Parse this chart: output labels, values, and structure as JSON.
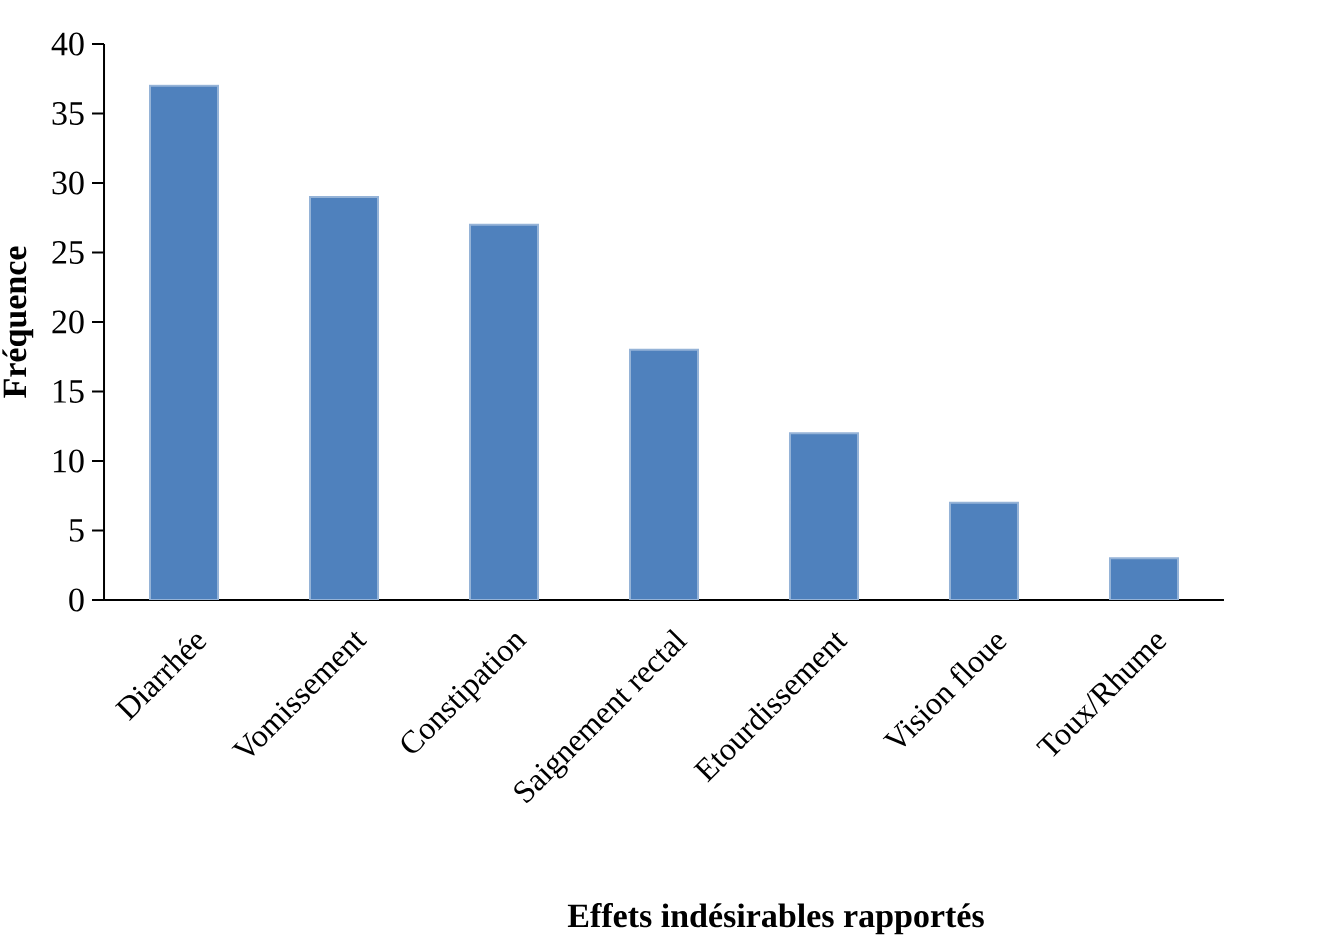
{
  "chart_data": {
    "type": "bar",
    "xlabel": "Effets indésirables rapportés",
    "ylabel": "Fréquence",
    "categories": [
      "Diarrhée",
      "Vomissement",
      "Constipation",
      "Saignement rectal",
      "Etourdissement",
      "Vision floue",
      "Toux/Rhume"
    ],
    "values": [
      37,
      29,
      27,
      18,
      12,
      7,
      3
    ],
    "color": "#4f81bd",
    "ylim": [
      0,
      40
    ],
    "yticks": [
      0,
      5,
      10,
      15,
      20,
      25,
      30,
      35,
      40
    ]
  }
}
